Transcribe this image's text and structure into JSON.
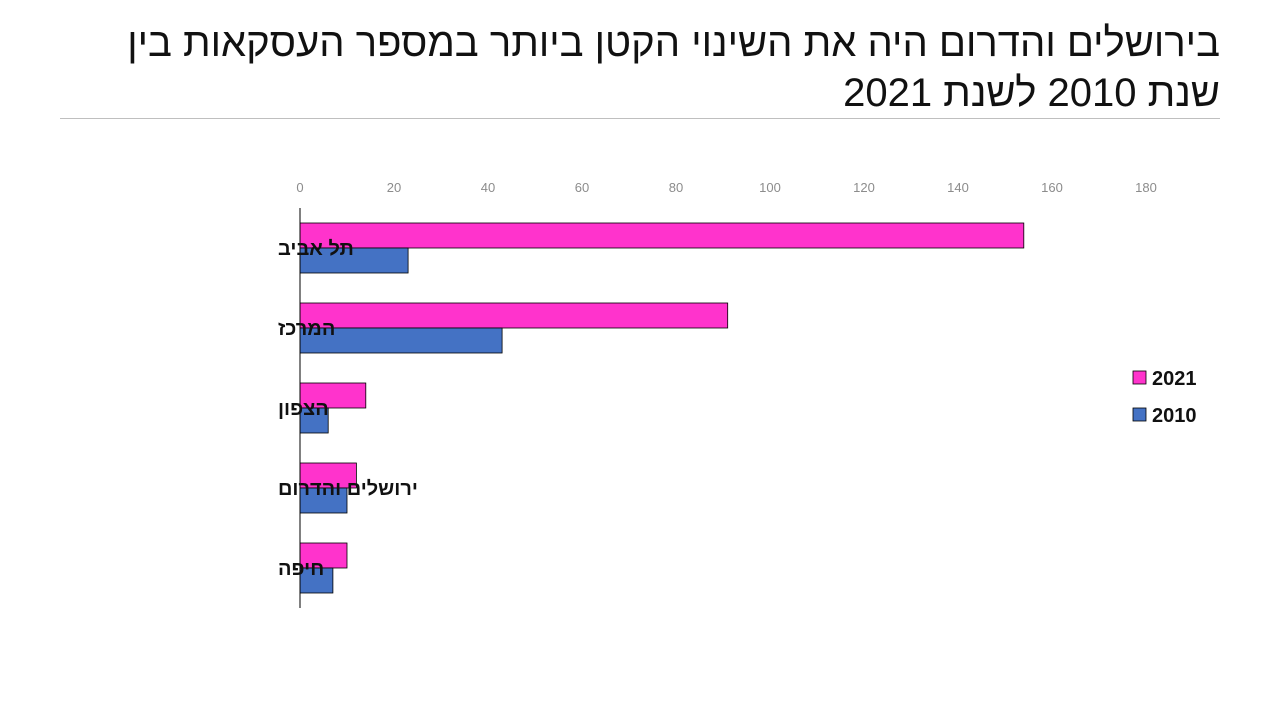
{
  "slide": {
    "title_line1": "בירושלים והדרום היה את השינוי הקטן ביותר במספר העסקאות בין",
    "title_line2": "שנת 2010 לשנת 2021"
  },
  "chart_data": {
    "type": "bar",
    "orientation": "horizontal",
    "categories": [
      "תל אביב",
      "המרכז",
      "הצפון",
      "ירושלים והדרום",
      "חיפה"
    ],
    "series": [
      {
        "name": "2021",
        "values": [
          154,
          91,
          14,
          12,
          10
        ],
        "color": "#ff33cc"
      },
      {
        "name": "2010",
        "values": [
          23,
          43,
          6,
          10,
          7
        ],
        "color": "#4472c4"
      }
    ],
    "xlim": [
      0,
      180
    ],
    "xticks": [
      0,
      20,
      40,
      60,
      80,
      100,
      120,
      140,
      160,
      180
    ],
    "axis_position": "top",
    "grid": false,
    "legend_position": "right"
  }
}
